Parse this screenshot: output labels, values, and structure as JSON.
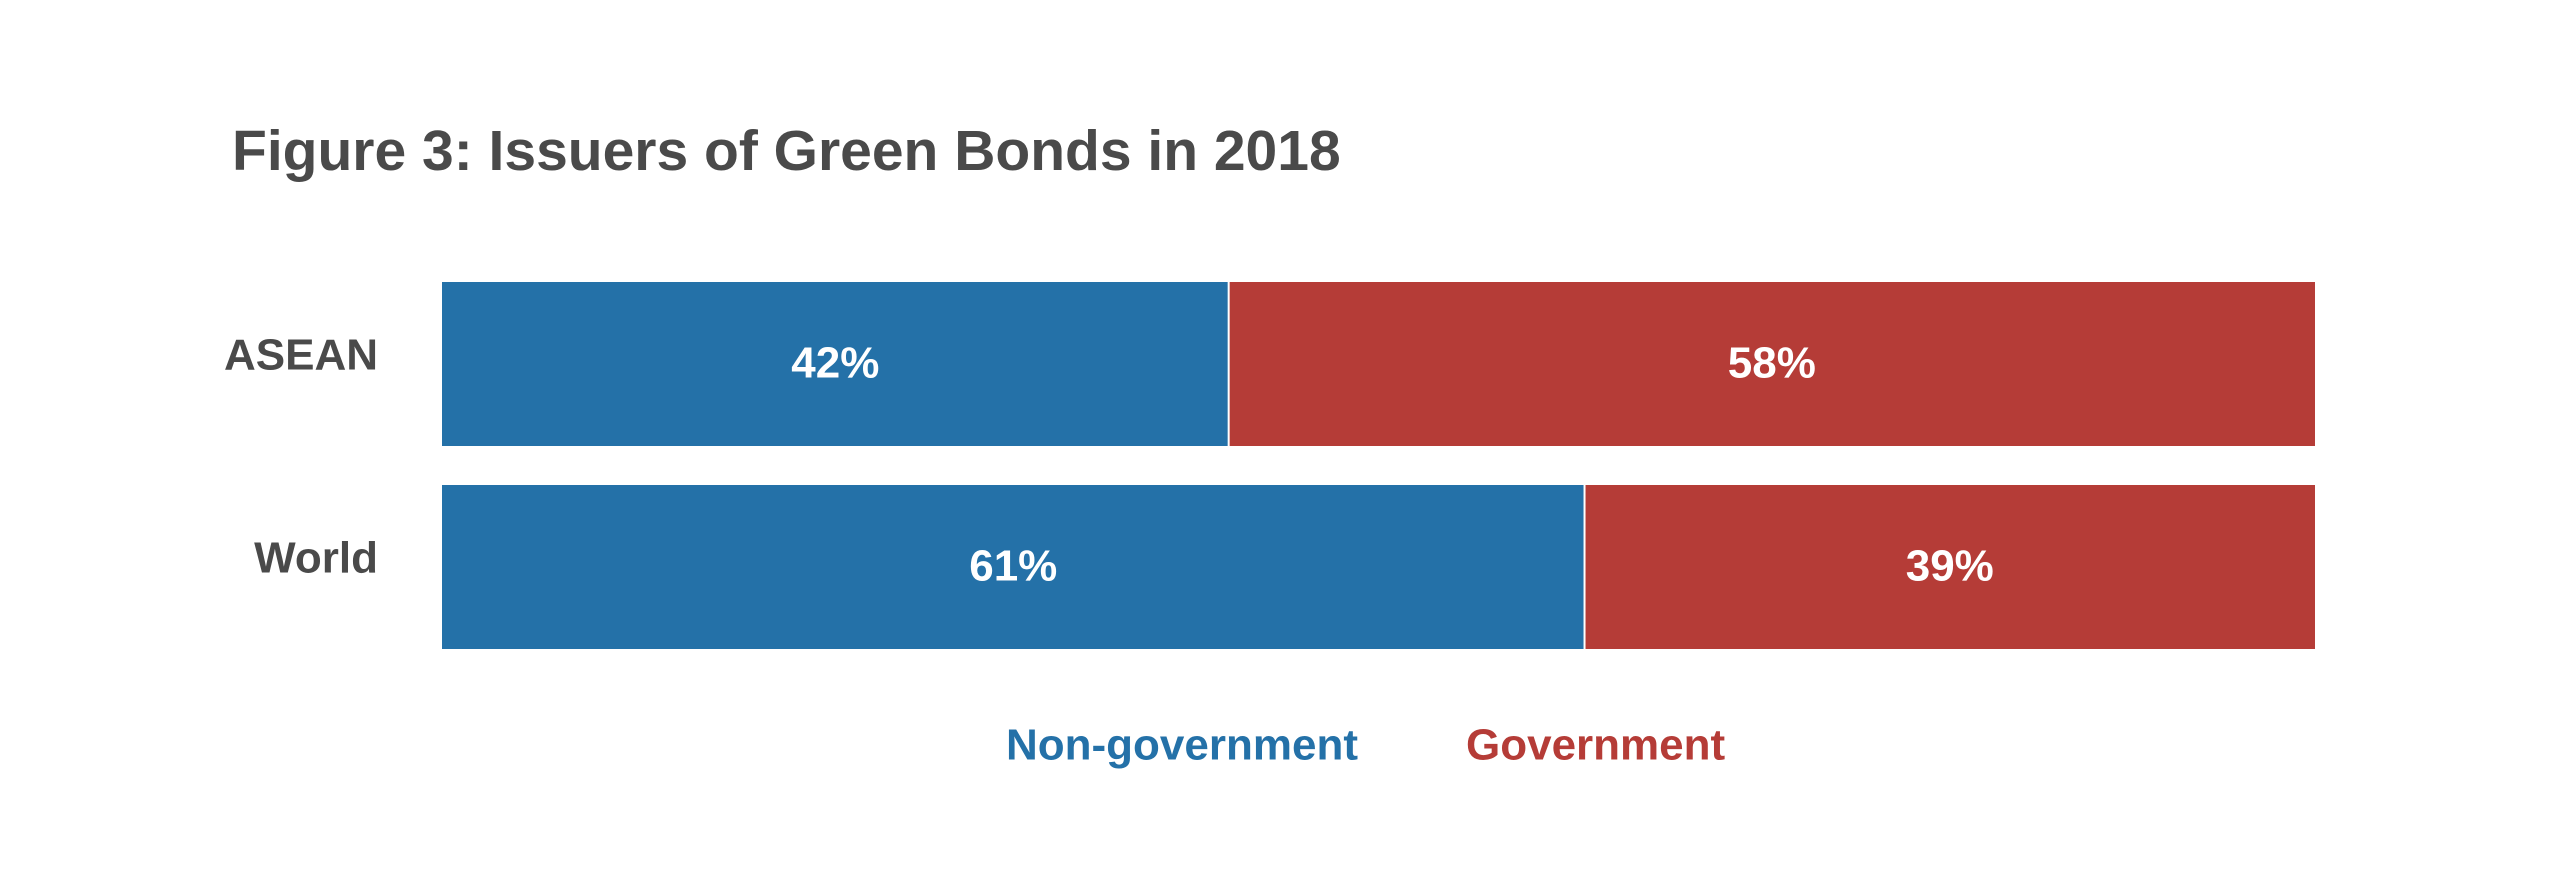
{
  "chart_data": {
    "type": "bar",
    "orientation": "horizontal",
    "stacked": true,
    "title": "Figure 3: Issuers of Green Bonds in 2018",
    "categories": [
      "ASEAN",
      "World"
    ],
    "series": [
      {
        "name": "Non-government",
        "values": [
          42,
          61
        ],
        "labels": [
          "42%",
          "61%"
        ],
        "color": "#2471a8"
      },
      {
        "name": "Government",
        "values": [
          58,
          39
        ],
        "labels": [
          "58%",
          "39%"
        ],
        "color": "#b53c37"
      }
    ],
    "xlim": [
      0,
      100
    ],
    "grid": false,
    "legend_position": "bottom-center"
  }
}
